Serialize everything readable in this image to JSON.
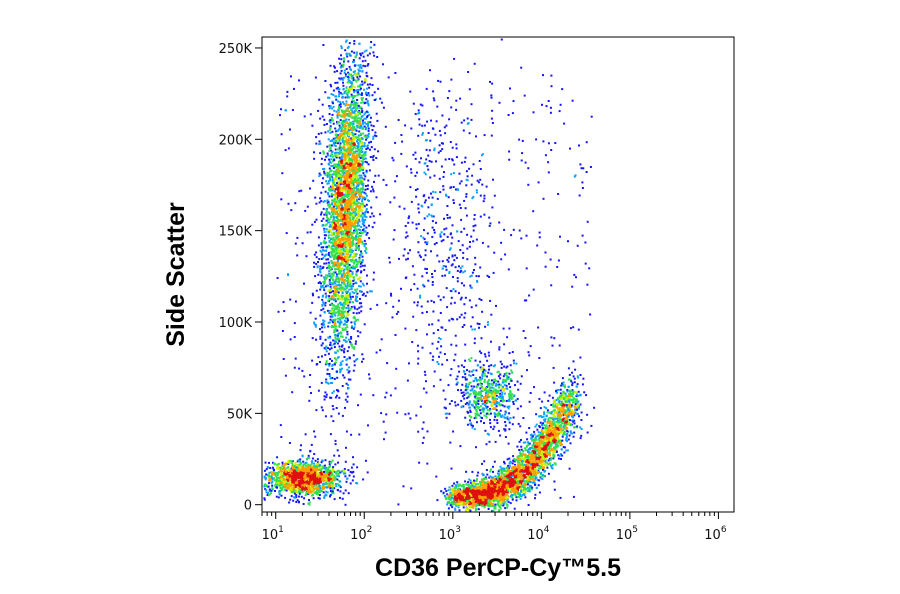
{
  "chart_data": {
    "type": "scatter",
    "plot_style": "flow cytometry density dot plot (blue-cyan-green-yellow-red by density)",
    "xlabel": "CD36 PerCP-Cy™5.5",
    "ylabel": "Side Scatter",
    "x_scale": "log",
    "xlim": [
      7,
      1500000
    ],
    "ylim": [
      -4000,
      256000
    ],
    "x_ticks": [
      {
        "value": 10,
        "base": "10",
        "exp": "1"
      },
      {
        "value": 100,
        "base": "10",
        "exp": "2"
      },
      {
        "value": 1000,
        "base": "10",
        "exp": "3"
      },
      {
        "value": 10000,
        "base": "10",
        "exp": "4"
      },
      {
        "value": 100000,
        "base": "10",
        "exp": "5"
      },
      {
        "value": 1000000,
        "base": "10",
        "exp": "6"
      }
    ],
    "y_ticks": [
      {
        "value": 0,
        "label": "0"
      },
      {
        "value": 50000,
        "label": "50K"
      },
      {
        "value": 100000,
        "label": "100K"
      },
      {
        "value": 150000,
        "label": "150K"
      },
      {
        "value": 200000,
        "label": "200K"
      },
      {
        "value": 250000,
        "label": "250K"
      }
    ],
    "grid": false,
    "density_colors": [
      "#1414ff",
      "#0aa0ff",
      "#00e0c8",
      "#30e050",
      "#c8f000",
      "#ffa000",
      "#e01010"
    ],
    "populations": [
      {
        "x_center": 60,
        "x_log_sd": 0.12,
        "y_center": 165000,
        "y_sd": 42000,
        "count": 3800,
        "tilt": 0.13
      },
      {
        "x_center": 20,
        "x_log_sd": 0.22,
        "y_center": 15000,
        "y_sd": 4500,
        "count": 1400,
        "tilt": 0
      },
      {
        "x_center": 2500,
        "x_log_sd": 0.16,
        "y_center": 60000,
        "y_sd": 9000,
        "count": 550,
        "tilt": 0
      },
      {
        "x_center": 800,
        "x_log_sd": 0.3,
        "y_center": 150000,
        "y_sd": 45000,
        "count": 450,
        "tilt": 0
      }
    ],
    "curved_population": {
      "x_start": 1000,
      "x_end": 22000,
      "y_start": 5000,
      "y_end": 60000,
      "y_sd": 5000,
      "count": 3200,
      "hotspot_x": 4000,
      "hotspot_y": 13000
    }
  }
}
